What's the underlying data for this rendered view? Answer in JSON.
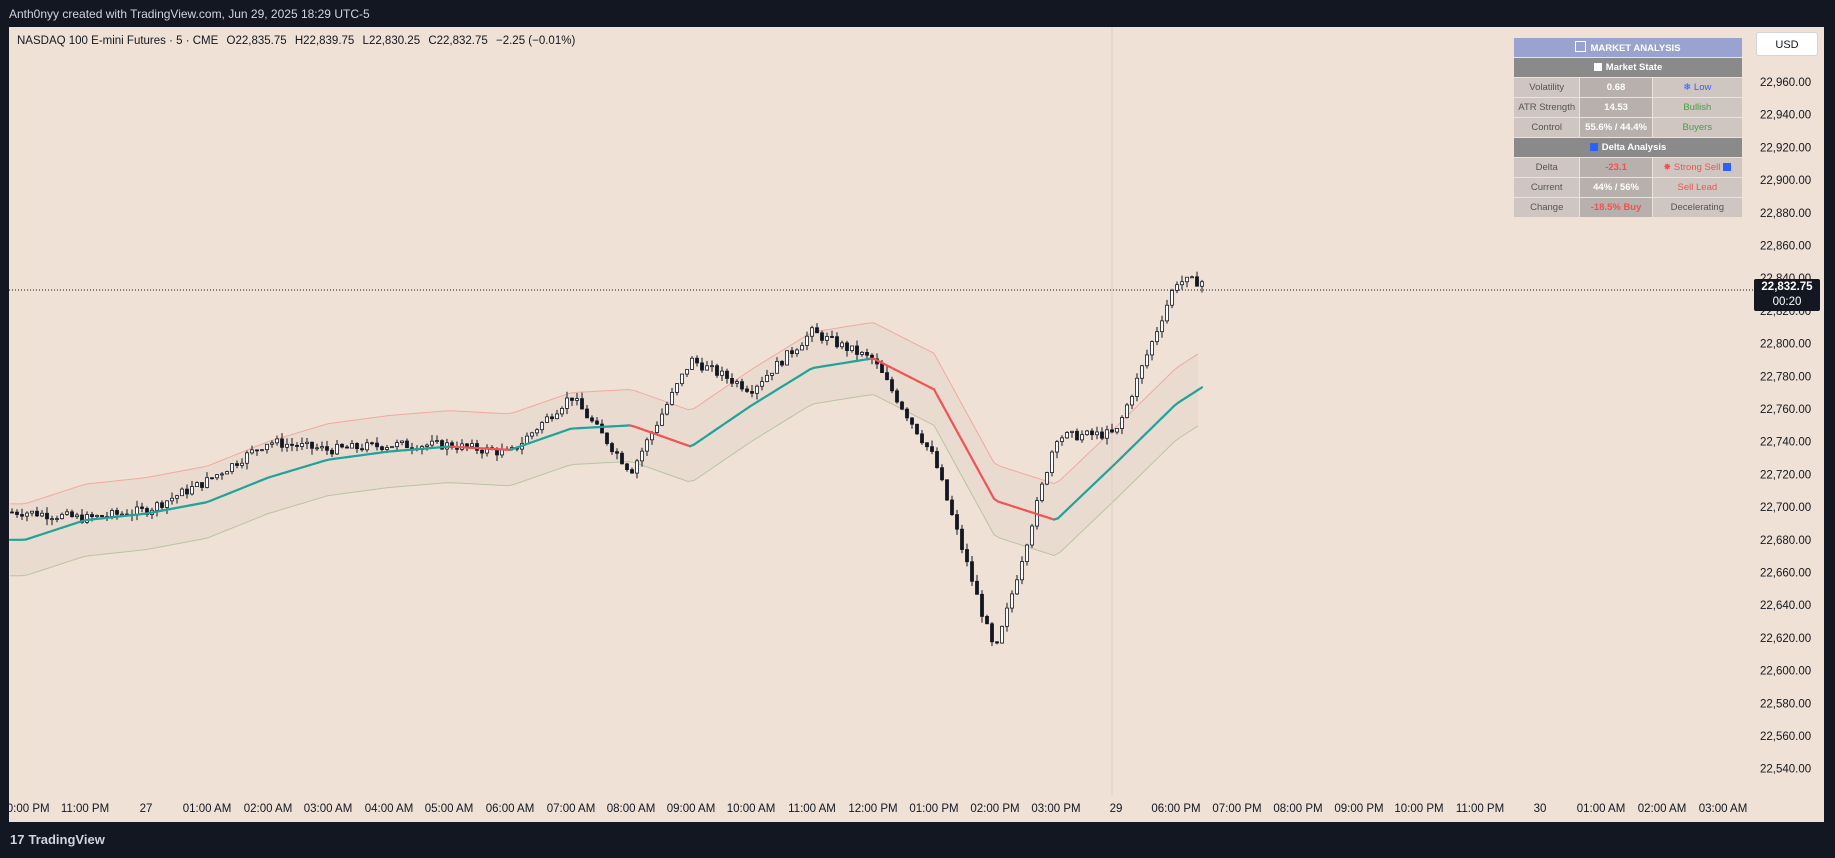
{
  "header": {
    "attribution": "Anth0nyy created with TradingView.com, Jun 29, 2025 18:29 UTC-5"
  },
  "footer": {
    "brand": "TradingView",
    "brand_glyph": "17"
  },
  "legend": {
    "symbol": "NASDAQ 100 E-mini Futures · 5 · CME",
    "o_label": "O",
    "o": "22,835.75",
    "h_label": "H",
    "h": "22,839.75",
    "l_label": "L",
    "l": "22,830.25",
    "c_label": "C",
    "c": "22,832.75",
    "change": "−2.25 (−0.01%)"
  },
  "currency": "USD",
  "last_price": {
    "price": "22,832.75",
    "countdown": "00:20"
  },
  "panel": {
    "title": "MARKET ANALYSIS",
    "section1": "Market State",
    "section2": "Delta Analysis",
    "rows1": [
      {
        "key": "Volatility",
        "value": "0.68",
        "state": "Low",
        "state_color": "blue",
        "icon": "snowflake-icon"
      },
      {
        "key": "ATR Strength",
        "value": "14.53",
        "state": "Bullish",
        "state_color": "green"
      },
      {
        "key": "Control",
        "value": "55.6% / 44.4%",
        "state": "Buyers",
        "state_color": "green"
      }
    ],
    "rows2": [
      {
        "key": "Delta",
        "value": "-23.1",
        "value_color": "red",
        "state": "Strong Sell",
        "state_color": "red",
        "icon": "explosion-icon"
      },
      {
        "key": "Current",
        "value": "44% / 56%",
        "state": "Sell Lead",
        "state_color": "red"
      },
      {
        "key": "Change",
        "value": "-18.5% Buy",
        "value_color": "red",
        "state": "Decelerating",
        "state_color": "grey"
      }
    ]
  },
  "colors": {
    "background": "#efe1d5",
    "candle": "#131722",
    "ma_bull": "#22a39a",
    "ma_bear": "#f05454",
    "upper_band": "#f0a9a0",
    "lower_band": "#b9c4a2",
    "band_fill": "#e8d9cd"
  },
  "chart_data": {
    "type": "candlestick",
    "symbol": "NASDAQ 100 E-mini Futures",
    "interval": "5",
    "y_axis": {
      "ticks": [
        "22,960.00",
        "22,940.00",
        "22,920.00",
        "22,900.00",
        "22,880.00",
        "22,860.00",
        "22,840.00",
        "22,820.00",
        "22,800.00",
        "22,780.00",
        "22,760.00",
        "22,740.00",
        "22,720.00",
        "22,700.00",
        "22,680.00",
        "22,660.00",
        "22,640.00",
        "22,620.00",
        "22,600.00",
        "22,580.00",
        "22,560.00",
        "22,540.00"
      ],
      "range": [
        22530,
        22975
      ]
    },
    "x_axis": {
      "ticks": [
        "10:00 PM",
        "11:00 PM",
        "27",
        "01:00 AM",
        "02:00 AM",
        "03:00 AM",
        "04:00 AM",
        "05:00 AM",
        "06:00 AM",
        "07:00 AM",
        "08:00 AM",
        "09:00 AM",
        "10:00 AM",
        "11:00 AM",
        "12:00 PM",
        "01:00 PM",
        "02:00 PM",
        "03:00 PM",
        "29",
        "06:00 PM",
        "07:00 PM",
        "08:00 PM",
        "09:00 PM",
        "10:00 PM",
        "11:00 PM",
        "30",
        "01:00 AM",
        "02:00 AM",
        "03:00 AM"
      ]
    },
    "price_series": [
      [
        "10:00 PM",
        22697
      ],
      [
        "11:00 PM",
        22693
      ],
      [
        "27",
        22698
      ],
      [
        "01:00 AM",
        22716
      ],
      [
        "02:00 AM",
        22740
      ],
      [
        "03:00 AM",
        22735
      ],
      [
        "04:00 AM",
        22738
      ],
      [
        "05:00 AM",
        22738
      ],
      [
        "06:00 AM",
        22733
      ],
      [
        "07:00 AM",
        22768
      ],
      [
        "08:00 AM",
        22722
      ],
      [
        "09:00 AM",
        22790
      ],
      [
        "10:00 AM",
        22772
      ],
      [
        "11:00 AM",
        22807
      ],
      [
        "12:00 PM",
        22790
      ],
      [
        "01:00 PM",
        22730
      ],
      [
        "02:00 PM",
        22610
      ],
      [
        "03:00 PM",
        22743
      ],
      [
        "29",
        22745
      ],
      [
        "06:00 PM",
        22838
      ]
    ],
    "moving_average": [
      [
        "10:00 PM",
        22680
      ],
      [
        "11:00 PM",
        22692
      ],
      [
        "27",
        22696
      ],
      [
        "01:00 AM",
        22703
      ],
      [
        "02:00 AM",
        22718
      ],
      [
        "03:00 AM",
        22729
      ],
      [
        "04:00 AM",
        22734
      ],
      [
        "05:00 AM",
        22737
      ],
      [
        "06:00 AM",
        22735
      ],
      [
        "07:00 AM",
        22748
      ],
      [
        "08:00 AM",
        22750
      ],
      [
        "09:00 AM",
        22737
      ],
      [
        "10:00 AM",
        22762
      ],
      [
        "11:00 AM",
        22785
      ],
      [
        "12:00 PM",
        22791
      ],
      [
        "01:00 PM",
        22772
      ],
      [
        "02:00 PM",
        22704
      ],
      [
        "03:00 PM",
        22692
      ],
      [
        "29",
        22727
      ],
      [
        "06:00 PM",
        22763
      ],
      [
        "07:00 PM",
        22787
      ]
    ],
    "last_close": 22832.75
  }
}
